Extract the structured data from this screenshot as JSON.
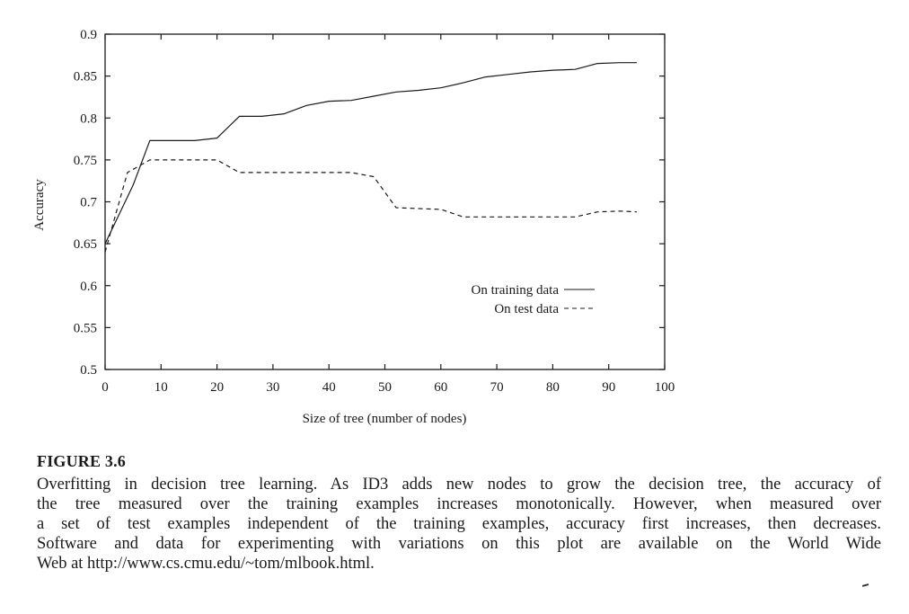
{
  "chart_data": {
    "type": "line",
    "xlabel": "Size of tree (number of nodes)",
    "ylabel": "Accuracy",
    "xlim": [
      0,
      100
    ],
    "ylim": [
      0.5,
      0.9
    ],
    "x_ticks": [
      "0",
      "10",
      "20",
      "30",
      "40",
      "50",
      "60",
      "70",
      "80",
      "90",
      "100"
    ],
    "y_ticks": [
      "0.5",
      "0.55",
      "0.6",
      "0.65",
      "0.7",
      "0.75",
      "0.8",
      "0.85",
      "0.9"
    ],
    "grid": false,
    "legend_position": "center-right",
    "series": [
      {
        "name": "On training data",
        "style": "solid",
        "x": [
          0,
          5,
          8,
          12,
          16,
          20,
          24,
          28,
          32,
          36,
          40,
          44,
          48,
          52,
          56,
          60,
          64,
          68,
          72,
          76,
          80,
          84,
          88,
          92,
          95
        ],
        "y": [
          0.65,
          0.72,
          0.773,
          0.773,
          0.773,
          0.776,
          0.802,
          0.802,
          0.805,
          0.815,
          0.82,
          0.821,
          0.826,
          0.831,
          0.833,
          0.836,
          0.842,
          0.849,
          0.852,
          0.855,
          0.857,
          0.858,
          0.865,
          0.866,
          0.866
        ]
      },
      {
        "name": "On test data",
        "style": "dashed",
        "x": [
          0,
          4,
          8,
          12,
          16,
          20,
          24,
          28,
          32,
          36,
          40,
          44,
          48,
          52,
          56,
          60,
          64,
          68,
          72,
          76,
          80,
          84,
          88,
          92,
          95
        ],
        "y": [
          0.64,
          0.735,
          0.75,
          0.75,
          0.75,
          0.75,
          0.735,
          0.735,
          0.735,
          0.735,
          0.735,
          0.735,
          0.73,
          0.693,
          0.692,
          0.691,
          0.682,
          0.682,
          0.682,
          0.682,
          0.682,
          0.682,
          0.688,
          0.689,
          0.688
        ]
      }
    ]
  },
  "caption": {
    "figure_label": "FIGURE 3.6",
    "lines": [
      "Overfitting in decision tree learning. As ID3 adds new nodes to grow the decision tree, the accuracy of",
      "the tree measured over the training examples increases monotonically. However, when measured over",
      "a set of test examples independent of the training examples, accuracy first increases, then decreases.",
      "Software and data for experimenting with variations on this plot are available on the World Wide",
      "Web at http://www.cs.cmu.edu/~tom/mlbook.html."
    ]
  }
}
